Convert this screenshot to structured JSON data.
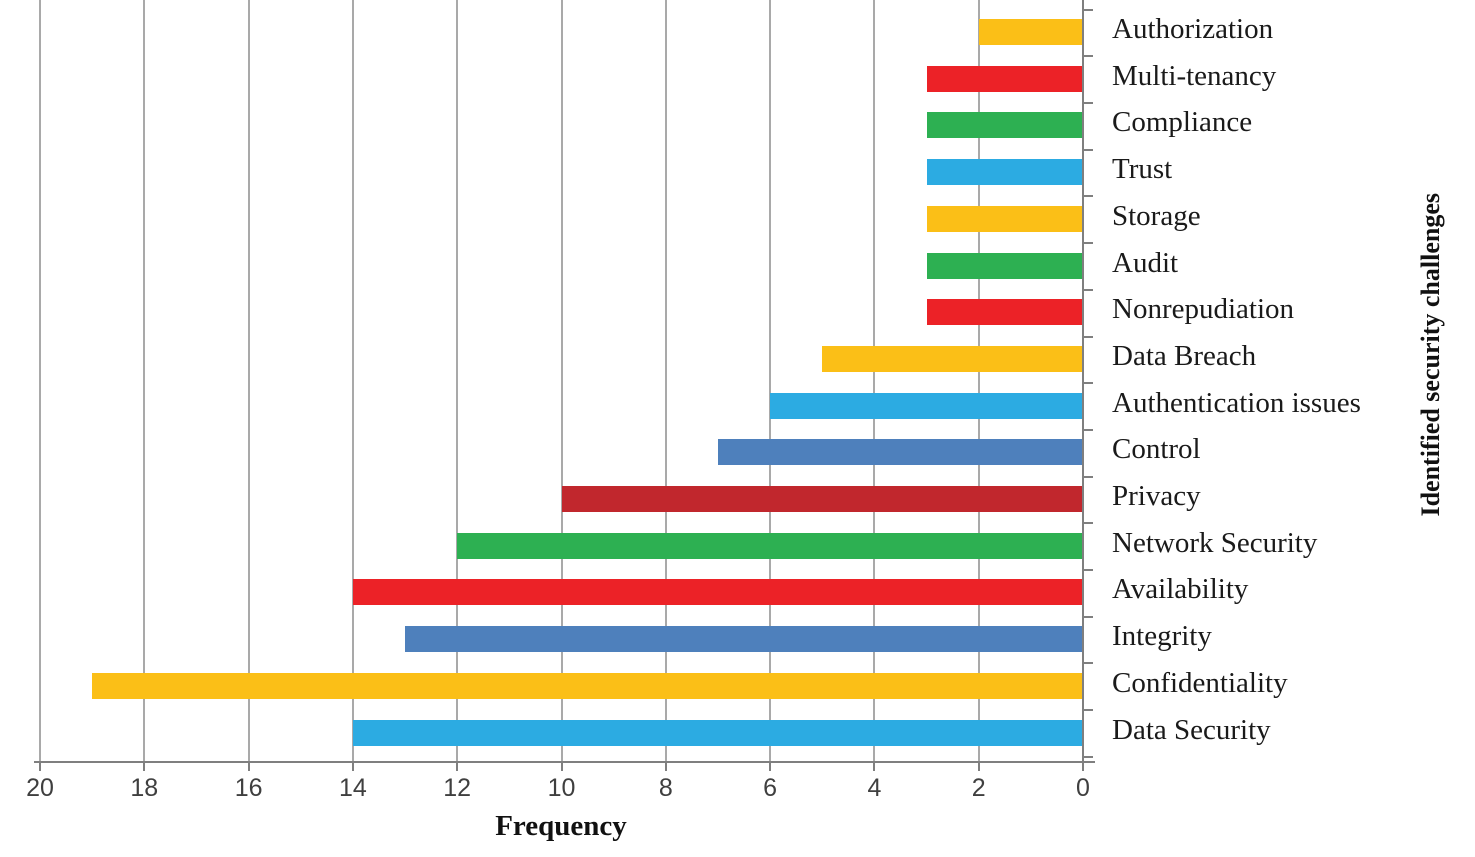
{
  "chart_data": {
    "type": "bar",
    "orientation": "horizontal",
    "title": "",
    "xlabel": "Frequency",
    "ylabel": "Identified security challenges",
    "x_ticks": [
      20,
      18,
      16,
      14,
      12,
      10,
      8,
      6,
      4,
      2,
      0
    ],
    "xlim": [
      0,
      20
    ],
    "x_axis_reversed": true,
    "grid": true,
    "legend": "none",
    "categories": [
      "Authorization",
      "Multi-tenancy",
      "Compliance",
      "Trust",
      "Storage",
      "Audit",
      "Nonrepudiation",
      "Data Breach",
      "Authentication issues",
      "Control",
      "Privacy",
      "Network Security",
      "Availability",
      "Integrity",
      "Confidentiality",
      "Data Security"
    ],
    "values": [
      2,
      3,
      3,
      3,
      3,
      3,
      3,
      5,
      6,
      7,
      10,
      12,
      14,
      13,
      19,
      14
    ],
    "bar_colors": [
      "#FBBF17",
      "#EC2227",
      "#2DB052",
      "#2CABE2",
      "#FBBF17",
      "#2DB052",
      "#EC2227",
      "#FBBF17",
      "#2CABE2",
      "#4E80BC",
      "#C1272D",
      "#2DB052",
      "#EC2227",
      "#4E80BC",
      "#FBBF17",
      "#2CABE2"
    ]
  },
  "styles": {
    "grid_color": "#A9A9A9",
    "axis_color": "#7F7F7F",
    "tick_label_color": "#3F3F3F",
    "category_label_color": "#1A1A1A",
    "background_color": "#FFFFFF"
  }
}
